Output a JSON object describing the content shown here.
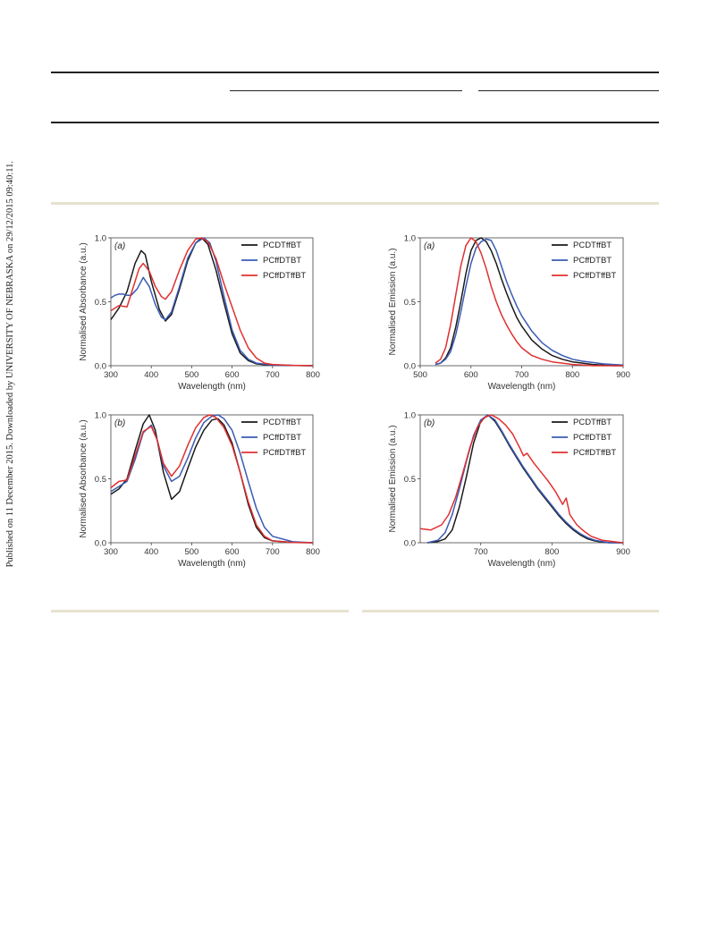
{
  "side_note": "Published on 11 December 2015. Downloaded by UNIVERSITY OF NEBRASKA on 29/12/2015 09:40:11.",
  "colors": {
    "PCDTffBT": "#1a1a1a",
    "PCffDTBT": "#3a5bb5",
    "PCffDTffBT": "#e03030"
  },
  "chart_data": [
    {
      "type": "line",
      "panel": "(a)",
      "xlabel": "Wavelength (nm)",
      "ylabel": "Normalised Absorbance (a.u.)",
      "xlim": [
        300,
        800
      ],
      "ylim": [
        0,
        1.0
      ],
      "xticks": [
        300,
        400,
        500,
        600,
        700,
        800
      ],
      "yticks": [
        0.0,
        0.5,
        1.0
      ],
      "legend_position": "top-right",
      "series": [
        {
          "name": "PCDTffBT",
          "color": "#1a1a1a",
          "x": [
            300,
            320,
            340,
            360,
            375,
            385,
            400,
            420,
            435,
            450,
            470,
            490,
            510,
            525,
            540,
            560,
            580,
            600,
            620,
            640,
            660,
            680,
            700,
            750,
            800
          ],
          "y": [
            0.36,
            0.45,
            0.58,
            0.8,
            0.9,
            0.87,
            0.66,
            0.44,
            0.35,
            0.4,
            0.6,
            0.82,
            0.96,
            1.0,
            0.95,
            0.75,
            0.49,
            0.25,
            0.1,
            0.04,
            0.015,
            0.008,
            0.005,
            0.002,
            0.0
          ]
        },
        {
          "name": "PCffDTBT",
          "color": "#3a5bb5",
          "x": [
            300,
            310,
            320,
            330,
            340,
            350,
            365,
            380,
            395,
            410,
            425,
            435,
            450,
            470,
            490,
            510,
            530,
            545,
            560,
            580,
            600,
            620,
            640,
            660,
            700,
            800
          ],
          "y": [
            0.53,
            0.55,
            0.56,
            0.56,
            0.55,
            0.55,
            0.6,
            0.69,
            0.62,
            0.48,
            0.38,
            0.36,
            0.42,
            0.62,
            0.84,
            0.96,
            1.0,
            0.96,
            0.82,
            0.54,
            0.28,
            0.12,
            0.05,
            0.02,
            0.005,
            0.0
          ]
        },
        {
          "name": "PCffDTffBT",
          "color": "#e03030",
          "x": [
            300,
            320,
            340,
            360,
            370,
            380,
            395,
            410,
            425,
            435,
            450,
            470,
            490,
            510,
            525,
            540,
            560,
            580,
            600,
            620,
            640,
            660,
            680,
            700,
            750,
            800
          ],
          "y": [
            0.43,
            0.47,
            0.46,
            0.66,
            0.76,
            0.8,
            0.74,
            0.62,
            0.54,
            0.52,
            0.58,
            0.75,
            0.9,
            0.99,
            1.0,
            0.97,
            0.84,
            0.64,
            0.46,
            0.28,
            0.14,
            0.06,
            0.02,
            0.01,
            0.003,
            0.0
          ]
        }
      ]
    },
    {
      "type": "line",
      "panel": "(a)",
      "xlabel": "Wavelength (nm)",
      "ylabel": "Normalised Emission (a.u.)",
      "xlim": [
        500,
        900
      ],
      "ylim": [
        0,
        1.0
      ],
      "xticks": [
        500,
        600,
        700,
        800,
        900
      ],
      "yticks": [
        0.0,
        0.5,
        1.0
      ],
      "legend_position": "top-right",
      "series": [
        {
          "name": "PCDTffBT",
          "color": "#1a1a1a",
          "x": [
            530,
            540,
            550,
            560,
            570,
            580,
            590,
            600,
            610,
            620,
            630,
            640,
            650,
            660,
            670,
            680,
            690,
            700,
            720,
            740,
            760,
            780,
            800,
            820,
            840,
            860,
            880,
            900
          ],
          "y": [
            0.01,
            0.02,
            0.06,
            0.14,
            0.3,
            0.5,
            0.72,
            0.9,
            0.98,
            1.0,
            0.97,
            0.9,
            0.8,
            0.68,
            0.57,
            0.47,
            0.38,
            0.31,
            0.2,
            0.13,
            0.08,
            0.05,
            0.03,
            0.02,
            0.01,
            0.005,
            0.0,
            0.0
          ]
        },
        {
          "name": "PCffDTBT",
          "color": "#3a5bb5",
          "x": [
            530,
            540,
            550,
            560,
            570,
            580,
            590,
            600,
            610,
            620,
            630,
            640,
            650,
            660,
            670,
            680,
            690,
            700,
            720,
            740,
            760,
            780,
            800,
            820,
            840,
            860,
            880,
            900
          ],
          "y": [
            0.01,
            0.02,
            0.05,
            0.11,
            0.24,
            0.42,
            0.62,
            0.8,
            0.92,
            0.97,
            0.99,
            0.98,
            0.9,
            0.78,
            0.66,
            0.56,
            0.47,
            0.39,
            0.27,
            0.18,
            0.12,
            0.08,
            0.05,
            0.035,
            0.025,
            0.015,
            0.01,
            0.005
          ]
        },
        {
          "name": "PCffDTffBT",
          "color": "#e03030",
          "x": [
            530,
            540,
            550,
            560,
            570,
            580,
            590,
            600,
            610,
            620,
            630,
            640,
            650,
            660,
            670,
            680,
            690,
            700,
            720,
            740,
            760,
            780,
            800,
            820,
            840,
            860,
            880,
            900
          ],
          "y": [
            0.02,
            0.05,
            0.14,
            0.32,
            0.55,
            0.78,
            0.94,
            1.0,
            0.97,
            0.88,
            0.76,
            0.62,
            0.5,
            0.4,
            0.32,
            0.25,
            0.19,
            0.14,
            0.08,
            0.05,
            0.03,
            0.02,
            0.01,
            0.005,
            0.0,
            0.0,
            0.0,
            0.0
          ]
        }
      ]
    },
    {
      "type": "line",
      "panel": "(b)",
      "xlabel": "Wavelength (nm)",
      "ylabel": "Normalised Absorbance (a.u.)",
      "xlim": [
        300,
        800
      ],
      "ylim": [
        0,
        1.0
      ],
      "xticks": [
        300,
        400,
        500,
        600,
        700,
        800
      ],
      "yticks": [
        0.0,
        0.5,
        1.0
      ],
      "legend_position": "top-right",
      "series": [
        {
          "name": "PCDTffBT",
          "color": "#1a1a1a",
          "x": [
            300,
            320,
            340,
            360,
            380,
            395,
            410,
            430,
            450,
            470,
            490,
            510,
            530,
            550,
            565,
            580,
            600,
            620,
            640,
            660,
            680,
            700,
            750,
            800
          ],
          "y": [
            0.38,
            0.42,
            0.5,
            0.72,
            0.93,
            1.0,
            0.88,
            0.55,
            0.34,
            0.4,
            0.58,
            0.75,
            0.88,
            0.96,
            0.97,
            0.92,
            0.78,
            0.55,
            0.3,
            0.12,
            0.04,
            0.015,
            0.003,
            0.0
          ]
        },
        {
          "name": "PCffDTBT",
          "color": "#3a5bb5",
          "x": [
            300,
            320,
            340,
            360,
            380,
            400,
            415,
            430,
            450,
            470,
            490,
            510,
            530,
            550,
            565,
            580,
            600,
            620,
            640,
            660,
            680,
            700,
            750,
            800
          ],
          "y": [
            0.4,
            0.44,
            0.48,
            0.65,
            0.86,
            0.92,
            0.8,
            0.6,
            0.48,
            0.52,
            0.66,
            0.82,
            0.94,
            0.99,
            1.0,
            0.97,
            0.88,
            0.7,
            0.48,
            0.27,
            0.12,
            0.05,
            0.008,
            0.0
          ]
        },
        {
          "name": "PCffDTffBT",
          "color": "#e03030",
          "x": [
            300,
            320,
            340,
            360,
            380,
            400,
            415,
            430,
            450,
            470,
            490,
            510,
            530,
            545,
            560,
            580,
            600,
            620,
            640,
            660,
            680,
            700,
            750,
            800
          ],
          "y": [
            0.43,
            0.48,
            0.49,
            0.68,
            0.87,
            0.91,
            0.8,
            0.62,
            0.52,
            0.6,
            0.76,
            0.9,
            0.98,
            1.0,
            0.98,
            0.9,
            0.76,
            0.55,
            0.32,
            0.14,
            0.05,
            0.015,
            0.002,
            0.0
          ]
        }
      ]
    },
    {
      "type": "line",
      "panel": "(b)",
      "xlabel": "Wavelength (nm)",
      "ylabel": "Normalised Emission (a.u.)",
      "xlim": [
        615,
        900
      ],
      "ylim": [
        0,
        1.0
      ],
      "xticks": [
        700,
        800,
        900
      ],
      "yticks": [
        0.0,
        0.5,
        1.0
      ],
      "legend_position": "top-right",
      "series": [
        {
          "name": "PCDTffBT",
          "color": "#1a1a1a",
          "x": [
            625,
            640,
            650,
            660,
            670,
            680,
            690,
            700,
            710,
            720,
            730,
            740,
            750,
            760,
            770,
            780,
            790,
            800,
            810,
            820,
            830,
            840,
            850,
            860,
            870,
            880,
            900
          ],
          "y": [
            0.0,
            0.01,
            0.03,
            0.1,
            0.28,
            0.52,
            0.78,
            0.95,
            1.0,
            0.95,
            0.86,
            0.76,
            0.67,
            0.58,
            0.5,
            0.42,
            0.35,
            0.28,
            0.21,
            0.15,
            0.1,
            0.06,
            0.03,
            0.015,
            0.005,
            0.0,
            0.0
          ]
        },
        {
          "name": "PCffDTBT",
          "color": "#3a5bb5",
          "x": [
            625,
            640,
            650,
            660,
            670,
            680,
            690,
            700,
            710,
            720,
            730,
            740,
            750,
            760,
            770,
            780,
            790,
            800,
            810,
            820,
            830,
            840,
            850,
            860,
            870,
            880,
            900
          ],
          "y": [
            0.0,
            0.02,
            0.08,
            0.22,
            0.42,
            0.64,
            0.84,
            0.96,
            1.0,
            0.96,
            0.87,
            0.77,
            0.68,
            0.59,
            0.51,
            0.43,
            0.36,
            0.29,
            0.22,
            0.16,
            0.11,
            0.07,
            0.04,
            0.02,
            0.01,
            0.0,
            0.0
          ]
        },
        {
          "name": "PCffDTffBT",
          "color": "#e03030",
          "x": [
            615,
            630,
            645,
            655,
            665,
            675,
            685,
            695,
            705,
            715,
            725,
            735,
            745,
            755,
            760,
            765,
            775,
            785,
            795,
            805,
            815,
            820,
            825,
            835,
            845,
            855,
            870,
            885,
            900
          ],
          "y": [
            0.11,
            0.1,
            0.14,
            0.22,
            0.36,
            0.55,
            0.75,
            0.9,
            0.98,
            1.0,
            0.97,
            0.92,
            0.85,
            0.74,
            0.68,
            0.7,
            0.62,
            0.55,
            0.48,
            0.4,
            0.3,
            0.35,
            0.22,
            0.14,
            0.09,
            0.05,
            0.02,
            0.01,
            0.0
          ]
        }
      ]
    }
  ]
}
